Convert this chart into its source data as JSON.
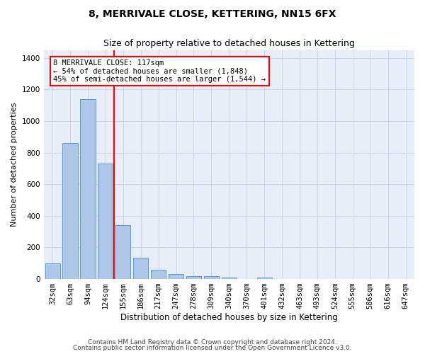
{
  "title": "8, MERRIVALE CLOSE, KETTERING, NN15 6FX",
  "subtitle": "Size of property relative to detached houses in Kettering",
  "xlabel": "Distribution of detached houses by size in Kettering",
  "ylabel": "Number of detached properties",
  "categories": [
    "32sqm",
    "63sqm",
    "94sqm",
    "124sqm",
    "155sqm",
    "186sqm",
    "217sqm",
    "247sqm",
    "278sqm",
    "309sqm",
    "340sqm",
    "370sqm",
    "401sqm",
    "432sqm",
    "463sqm",
    "493sqm",
    "524sqm",
    "555sqm",
    "586sqm",
    "616sqm",
    "647sqm"
  ],
  "values": [
    100,
    860,
    1140,
    730,
    340,
    135,
    60,
    33,
    18,
    18,
    10,
    0,
    10,
    0,
    0,
    0,
    0,
    0,
    0,
    0,
    0
  ],
  "bar_color": "#aec6e8",
  "bar_edge_color": "#5b9bd5",
  "vline_color": "red",
  "annotation_text": "8 MERRIVALE CLOSE: 117sqm\n← 54% of detached houses are smaller (1,848)\n45% of semi-detached houses are larger (1,544) →",
  "annotation_box_color": "white",
  "annotation_box_edge": "red",
  "ylim": [
    0,
    1450
  ],
  "yticks": [
    0,
    200,
    400,
    600,
    800,
    1000,
    1200,
    1400
  ],
  "grid_color": "#d0d8e8",
  "background_color": "#e8eef8",
  "footer_line1": "Contains HM Land Registry data © Crown copyright and database right 2024.",
  "footer_line2": "Contains public sector information licensed under the Open Government Licence v3.0.",
  "title_fontsize": 10,
  "subtitle_fontsize": 9,
  "xlabel_fontsize": 8.5,
  "ylabel_fontsize": 8,
  "tick_fontsize": 7.5,
  "footer_fontsize": 6.5,
  "annotation_fontsize": 7.5
}
